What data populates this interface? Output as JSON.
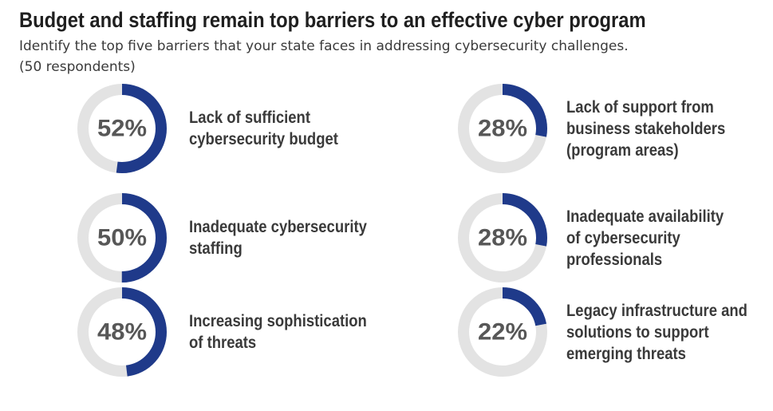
{
  "title": "Budget and staffing remain top barriers to an effective cyber program",
  "subtitle_line1": "Identify the top five barriers that your state faces in addressing cybersecurity challenges.",
  "subtitle_line2": "(50 respondents)",
  "colors": {
    "accent": "#1f3a8a",
    "track": "#e3e3e3",
    "text": "#3a3a3a",
    "percent": "#575757"
  },
  "chart_data": {
    "type": "pie",
    "unit": "%",
    "items": [
      {
        "value": 52,
        "value_label": "52%",
        "label": "Lack of sufficient\ncybersecurity budget"
      },
      {
        "value": 50,
        "value_label": "50%",
        "label": "Inadequate cybersecurity\nstaffing"
      },
      {
        "value": 48,
        "value_label": "48%",
        "label": "Increasing sophistication\nof threats"
      },
      {
        "value": 28,
        "value_label": "28%",
        "label": "Lack of support from\nbusiness stakeholders\n(program areas)"
      },
      {
        "value": 28,
        "value_label": "28%",
        "label": "Inadequate availability\nof cybersecurity\nprofessionals"
      },
      {
        "value": 22,
        "value_label": "22%",
        "label": "Legacy infrastructure and\nsolutions to support\nemerging threats"
      }
    ]
  }
}
